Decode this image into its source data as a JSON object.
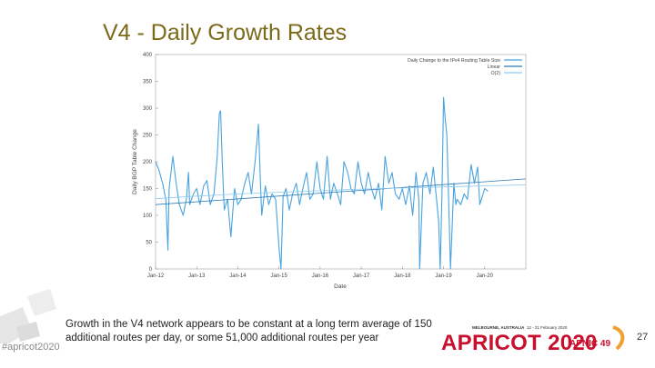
{
  "slide": {
    "title": "V4 - Daily Growth Rates",
    "caption": "Growth in the V4 network appears to be constant at a long term average of 150 additional routes per day, or some 51,000 additional routes per year",
    "hashtag": "#apricot2020",
    "page_number": "27"
  },
  "branding": {
    "event_location": "MELBOURNE, AUSTRALIA",
    "event_dates": "12 - 21 February 2020",
    "logo_text": "APRICOT 2020",
    "logo_subtext": "APNIC 49",
    "accent_color": "#c8102e"
  },
  "chart_data": {
    "type": "line",
    "title": "",
    "xlabel": "Date",
    "ylabel": "Daily BGP Table Change",
    "xlim": [
      2012.0,
      2021.0
    ],
    "ylim": [
      0,
      400
    ],
    "x_ticks": [
      2012,
      2013,
      2014,
      2015,
      2016,
      2017,
      2018,
      2019,
      2020
    ],
    "x_tick_labels": [
      "Jan-12",
      "Jan-13",
      "Jan-14",
      "Jan-15",
      "Jan-16",
      "Jan-17",
      "Jan-18",
      "Jan-19",
      "Jan-20"
    ],
    "y_ticks": [
      0,
      50,
      100,
      150,
      200,
      250,
      300,
      350,
      400
    ],
    "grid": false,
    "legend_position": "top-right",
    "series": [
      {
        "name": "Daily Change to the IPv4 Routing Table Size",
        "color": "#4aa3df",
        "x": [
          2012.0,
          2012.08,
          2012.17,
          2012.25,
          2012.3,
          2012.33,
          2012.42,
          2012.5,
          2012.58,
          2012.67,
          2012.75,
          2012.8,
          2012.83,
          2012.92,
          2013.0,
          2013.08,
          2013.17,
          2013.25,
          2013.33,
          2013.42,
          2013.5,
          2013.55,
          2013.58,
          2013.62,
          2013.67,
          2013.75,
          2013.83,
          2013.92,
          2014.0,
          2014.08,
          2014.17,
          2014.25,
          2014.33,
          2014.42,
          2014.5,
          2014.55,
          2014.58,
          2014.67,
          2014.75,
          2014.83,
          2014.92,
          2015.0,
          2015.05,
          2015.1,
          2015.17,
          2015.25,
          2015.33,
          2015.42,
          2015.5,
          2015.58,
          2015.67,
          2015.75,
          2015.83,
          2015.92,
          2016.0,
          2016.08,
          2016.17,
          2016.25,
          2016.33,
          2016.42,
          2016.5,
          2016.58,
          2016.67,
          2016.75,
          2016.83,
          2016.92,
          2017.0,
          2017.08,
          2017.17,
          2017.25,
          2017.33,
          2017.42,
          2017.5,
          2017.58,
          2017.67,
          2017.75,
          2017.83,
          2017.92,
          2018.0,
          2018.08,
          2018.17,
          2018.25,
          2018.33,
          2018.4,
          2018.42,
          2018.5,
          2018.58,
          2018.67,
          2018.75,
          2018.83,
          2018.88,
          2018.92,
          2018.96,
          2019.0,
          2019.04,
          2019.08,
          2019.12,
          2019.17,
          2019.25,
          2019.3,
          2019.33,
          2019.42,
          2019.5,
          2019.58,
          2019.67,
          2019.75,
          2019.83,
          2019.88,
          2019.92,
          2020.0,
          2020.08
        ],
        "y": [
          200,
          185,
          160,
          130,
          35,
          150,
          210,
          160,
          120,
          100,
          130,
          180,
          120,
          140,
          150,
          120,
          155,
          165,
          120,
          140,
          210,
          290,
          295,
          200,
          110,
          130,
          60,
          150,
          120,
          130,
          160,
          180,
          140,
          200,
          270,
          160,
          100,
          155,
          120,
          140,
          130,
          40,
          0,
          135,
          150,
          110,
          140,
          160,
          120,
          150,
          180,
          130,
          140,
          200,
          150,
          130,
          210,
          130,
          160,
          140,
          120,
          200,
          180,
          150,
          140,
          200,
          160,
          140,
          180,
          150,
          130,
          160,
          110,
          210,
          160,
          180,
          140,
          130,
          150,
          120,
          155,
          100,
          180,
          130,
          0,
          160,
          180,
          140,
          190,
          130,
          90,
          0,
          130,
          320,
          280,
          250,
          140,
          0,
          160,
          120,
          130,
          120,
          140,
          130,
          195,
          160,
          190,
          120,
          130,
          150,
          145
        ]
      },
      {
        "name": "Linear",
        "color": "#2b7bb9",
        "x": [
          2012.0,
          2021.0
        ],
        "y": [
          120,
          168
        ]
      },
      {
        "name": "O(2)",
        "color": "#8ccaf0",
        "x": [
          2012.0,
          2013.0,
          2014.0,
          2015.0,
          2016.0,
          2017.0,
          2018.0,
          2019.0,
          2020.0,
          2021.0
        ],
        "y": [
          131,
          136,
          140,
          143,
          146,
          149,
          151,
          153,
          155,
          157
        ]
      }
    ]
  }
}
